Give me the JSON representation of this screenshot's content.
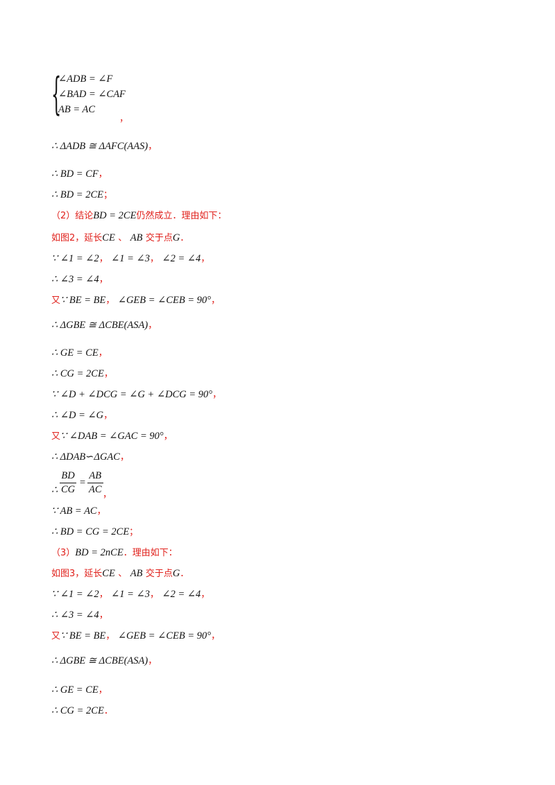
{
  "system": {
    "l1": "∠ADB = ∠F",
    "l2": "∠BAD = ∠CAF",
    "l3": "AB = AC",
    "tail": "，"
  },
  "lines": [
    {
      "m": "∴ ΔADB ≅ ΔAFC(AAS)",
      "p": "，"
    },
    {
      "m": "∴ BD = CF",
      "p": "，"
    },
    {
      "m": "∴ BD = 2CE",
      "p": "；"
    },
    {
      "r1": "（2）结论",
      "m": "BD = 2CE",
      "r2": "仍然成立．理由如下："
    },
    {
      "r1": "如图2，延长",
      "m1": "CE",
      "r2": "、",
      "m2": "AB",
      "r3": "交于点",
      "m3": "G",
      "p": "．"
    },
    {
      "m1": "∵ ∠1 = ∠2",
      "p1": "，",
      "m2": "∠1 = ∠3",
      "p2": "，",
      "m3": "∠2 = ∠4",
      "p3": "，"
    },
    {
      "m": "∴ ∠3 = ∠4",
      "p": "，"
    },
    {
      "r": "又",
      "m1": "∵ BE = BE",
      "p1": "，",
      "m2": "∠GEB = ∠CEB = 90°",
      "p2": "，"
    },
    {
      "m": "∴ ΔGBE ≅ ΔCBE(ASA)",
      "p": "，"
    },
    {
      "m": "∴ GE = CE",
      "p": "，"
    },
    {
      "m": "∴ CG = 2CE",
      "p": "，"
    },
    {
      "m": "∵ ∠D + ∠DCG = ∠G + ∠DCG = 90°",
      "p": "，"
    },
    {
      "m": "∴ ∠D = ∠G",
      "p": "，"
    },
    {
      "r": "又",
      "m": "∵ ∠DAB = ∠GAC = 90°",
      "p": "，"
    },
    {
      "m": "∴ ΔDAB∽ΔGAC",
      "p": "，"
    },
    {
      "therefore": "∴",
      "num1": "BD",
      "den1": "CG",
      "eq": "=",
      "num2": "AB",
      "den2": "AC",
      "p": "，"
    },
    {
      "m": "∵ AB = AC",
      "p": "，"
    },
    {
      "m": "∴ BD = CG = 2CE",
      "p": "；"
    },
    {
      "r1": "（3）",
      "m": "BD = 2nCE",
      "r2": "．理由如下："
    },
    {
      "r1": "如图3，延长",
      "m1": "CE",
      "r2": "、",
      "m2": "AB",
      "r3": "交于点",
      "m3": "G",
      "p": "．"
    },
    {
      "m1": "∵ ∠1 = ∠2",
      "p1": "，",
      "m2": "∠1 = ∠3",
      "p2": "，",
      "m3": "∠2 = ∠4",
      "p3": "，"
    },
    {
      "m": "∴ ∠3 = ∠4",
      "p": "，"
    },
    {
      "r": "又",
      "m1": "∵ BE = BE",
      "p1": "，",
      "m2": "∠GEB = ∠CEB = 90°",
      "p2": "，"
    },
    {
      "m": "∴ ΔGBE ≅ ΔCBE(ASA)",
      "p": "，"
    },
    {
      "m": "∴ GE = CE",
      "p": "，"
    },
    {
      "m": "∴ CG = 2CE",
      "p": "．"
    }
  ]
}
